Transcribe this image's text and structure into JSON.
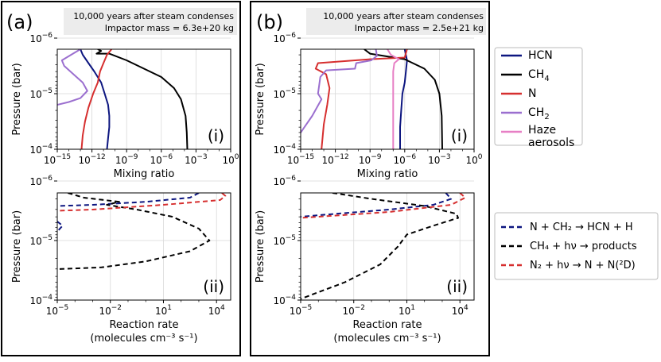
{
  "panels": [
    {
      "label": "(a)",
      "annotation": {
        "line1": "10,000 years after steam condenses",
        "line2_prefix": "Impactor mass = ",
        "line2_value": "6.3e+20 kg"
      },
      "top_sublabel": "(i)",
      "bottom_sublabel": "(ii)"
    },
    {
      "label": "(b)",
      "annotation": {
        "line1": "10,000 years after steam condenses",
        "line2_prefix": "Impactor mass = ",
        "line2_value": "2.5e+21 kg"
      },
      "top_sublabel": "(i)",
      "bottom_sublabel": "(ii)"
    }
  ],
  "axes": {
    "pressure_label": "Pressure (bar)",
    "mixing_label": "Mixing ratio",
    "rate_label_line1": "Reaction rate",
    "rate_label_line2": "(molecules cm⁻³ s⁻¹)",
    "pressure_ticks": [
      {
        "base": "10",
        "exp": "−6",
        "value": -6
      },
      {
        "base": "10",
        "exp": "−5",
        "value": -5
      },
      {
        "base": "10",
        "exp": "−4",
        "value": -4
      }
    ],
    "mixing_ticks": [
      {
        "base": "10",
        "exp": "−15",
        "value": -15
      },
      {
        "base": "10",
        "exp": "−12",
        "value": -12
      },
      {
        "base": "10",
        "exp": "−9",
        "value": -9
      },
      {
        "base": "10",
        "exp": "−6",
        "value": -6
      },
      {
        "base": "10",
        "exp": "−3",
        "value": -3
      },
      {
        "base": "10",
        "exp": "0",
        "value": 0
      }
    ],
    "rate_ticks": [
      {
        "base": "10",
        "exp": "−5",
        "value": -5
      },
      {
        "base": "10",
        "exp": "−2",
        "value": -2
      },
      {
        "base": "10",
        "exp": "1",
        "value": 1
      },
      {
        "base": "10",
        "exp": "4",
        "value": 4
      }
    ]
  },
  "legend_species": [
    {
      "label": "HCN",
      "sub": "",
      "color": "#0d1680"
    },
    {
      "label": "CH",
      "sub": "4",
      "color": "#000000"
    },
    {
      "label": "N",
      "sub": "",
      "color": "#d62f2f"
    },
    {
      "label": "CH",
      "sub": "2",
      "color": "#9b6fcf"
    },
    {
      "label": "Haze",
      "label2": "aerosols",
      "sub": "",
      "color": "#e77fc5"
    }
  ],
  "legend_reactions": [
    {
      "text": "N + CH₂ → HCN + H",
      "color": "#0d1680"
    },
    {
      "text": "CH₄ + hν → products",
      "color": "#000000"
    },
    {
      "text": "N₂ + hν → N + N(²D)",
      "color": "#d62f2f"
    }
  ],
  "chart_data": [
    {
      "type": "line",
      "title": "(a)(i) Mixing ratio profiles, impactor mass 6.3e+20 kg",
      "xlabel": "Mixing ratio",
      "ylabel": "Pressure (bar)",
      "xscale": "log",
      "yscale": "log",
      "xlim": [
        -15,
        0
      ],
      "ylim": [
        -4,
        -5.8
      ],
      "grid": true,
      "series": [
        {
          "name": "HCN",
          "color": "#0d1680",
          "dash": "",
          "points": [
            [
              -13.0,
              -5.8
            ],
            [
              -12.8,
              -5.7
            ],
            [
              -12.3,
              -5.55
            ],
            [
              -11.8,
              -5.4
            ],
            [
              -11.2,
              -5.2
            ],
            [
              -10.9,
              -5.0
            ],
            [
              -10.6,
              -4.8
            ],
            [
              -10.5,
              -4.6
            ],
            [
              -10.5,
              -4.4
            ],
            [
              -10.6,
              -4.2
            ],
            [
              -10.7,
              -4.0
            ]
          ]
        },
        {
          "name": "CH4",
          "color": "#000000",
          "dash": "",
          "points": [
            [
              -11.5,
              -5.8
            ],
            [
              -11.2,
              -5.77
            ],
            [
              -11.6,
              -5.72
            ],
            [
              -10.5,
              -5.72
            ],
            [
              -9.0,
              -5.6
            ],
            [
              -7.5,
              -5.45
            ],
            [
              -6.0,
              -5.3
            ],
            [
              -4.9,
              -5.1
            ],
            [
              -4.3,
              -4.9
            ],
            [
              -3.9,
              -4.6
            ],
            [
              -3.8,
              -4.3
            ],
            [
              -3.75,
              -4.0
            ]
          ]
        },
        {
          "name": "N",
          "color": "#d62f2f",
          "dash": "",
          "points": [
            [
              -10.3,
              -5.8
            ],
            [
              -10.7,
              -5.7
            ],
            [
              -11.0,
              -5.55
            ],
            [
              -11.3,
              -5.4
            ],
            [
              -11.5,
              -5.2
            ],
            [
              -11.9,
              -5.0
            ],
            [
              -12.3,
              -4.75
            ],
            [
              -12.6,
              -4.5
            ],
            [
              -12.8,
              -4.25
            ],
            [
              -12.9,
              -4.0
            ]
          ]
        },
        {
          "name": "CH2",
          "color": "#9b6fcf",
          "dash": "",
          "points": [
            [
              -13.0,
              -5.8
            ],
            [
              -13.8,
              -5.7
            ],
            [
              -14.6,
              -5.6
            ],
            [
              -14.4,
              -5.5
            ],
            [
              -13.6,
              -5.35
            ],
            [
              -12.8,
              -5.2
            ],
            [
              -12.4,
              -5.05
            ],
            [
              -13.0,
              -4.92
            ],
            [
              -14.0,
              -4.85
            ],
            [
              -15.0,
              -4.8
            ]
          ]
        }
      ]
    },
    {
      "type": "line",
      "title": "(a)(ii) Reaction rates, impactor mass 6.3e+20 kg",
      "xlabel": "Reaction rate (molecules cm^-3 s^-1)",
      "ylabel": "Pressure (bar)",
      "xscale": "log",
      "yscale": "log",
      "xlim": [
        -5,
        4.8
      ],
      "ylim": [
        -4,
        -5.8
      ],
      "grid": true,
      "series": [
        {
          "name": "N + CH2 -> HCN + H",
          "color": "#0d1680",
          "dash": "6 4",
          "points": [
            [
              3.0,
              -5.8
            ],
            [
              2.5,
              -5.72
            ],
            [
              0.0,
              -5.65
            ],
            [
              -3.0,
              -5.6
            ],
            [
              -5.0,
              -5.58
            ]
          ]
        },
        {
          "name": "N + CH2 -> HCN + H (deep branch)",
          "color": "#0d1680",
          "dash": "6 4",
          "points": [
            [
              -5.0,
              -5.32
            ],
            [
              -4.7,
              -5.25
            ],
            [
              -5.0,
              -5.15
            ]
          ]
        },
        {
          "name": "CH4 + hv -> products",
          "color": "#000000",
          "dash": "6 4",
          "points": [
            [
              -4.4,
              -5.8
            ],
            [
              -3.5,
              -5.72
            ],
            [
              -1.5,
              -5.65
            ],
            [
              -2.2,
              -5.6
            ],
            [
              -0.5,
              -5.52
            ],
            [
              1.5,
              -5.4
            ],
            [
              3.0,
              -5.2
            ],
            [
              3.6,
              -5.0
            ],
            [
              2.5,
              -4.82
            ],
            [
              0.0,
              -4.65
            ],
            [
              -2.5,
              -4.55
            ],
            [
              -5.0,
              -4.52
            ]
          ]
        },
        {
          "name": "N2 + hv -> N + N(2D)",
          "color": "#d62f2f",
          "dash": "6 4",
          "points": [
            [
              4.3,
              -5.8
            ],
            [
              4.5,
              -5.75
            ],
            [
              4.2,
              -5.68
            ],
            [
              1.0,
              -5.6
            ],
            [
              -3.0,
              -5.52
            ],
            [
              -5.0,
              -5.5
            ]
          ]
        }
      ]
    },
    {
      "type": "line",
      "title": "(b)(i) Mixing ratio profiles, impactor mass 2.5e+21 kg",
      "xlabel": "Mixing ratio",
      "ylabel": "Pressure (bar)",
      "xscale": "log",
      "yscale": "log",
      "xlim": [
        -15,
        0
      ],
      "ylim": [
        -4,
        -5.8
      ],
      "grid": true,
      "series": [
        {
          "name": "HCN",
          "color": "#0d1680",
          "dash": "",
          "points": [
            [
              -6.0,
              -5.8
            ],
            [
              -5.8,
              -5.6
            ],
            [
              -5.9,
              -5.4
            ],
            [
              -6.0,
              -5.2
            ],
            [
              -6.2,
              -5.0
            ],
            [
              -6.3,
              -4.7
            ],
            [
              -6.4,
              -4.4
            ],
            [
              -6.4,
              -4.0
            ]
          ]
        },
        {
          "name": "CH4",
          "color": "#000000",
          "dash": "",
          "points": [
            [
              -9.5,
              -5.8
            ],
            [
              -9.0,
              -5.72
            ],
            [
              -6.0,
              -5.62
            ],
            [
              -4.3,
              -5.45
            ],
            [
              -3.4,
              -5.25
            ],
            [
              -3.0,
              -5.0
            ],
            [
              -2.8,
              -4.6
            ],
            [
              -2.75,
              -4.0
            ]
          ]
        },
        {
          "name": "N",
          "color": "#d62f2f",
          "dash": "",
          "points": [
            [
              -5.8,
              -5.8
            ],
            [
              -6.0,
              -5.65
            ],
            [
              -9.0,
              -5.62
            ],
            [
              -13.5,
              -5.55
            ],
            [
              -13.7,
              -5.45
            ],
            [
              -12.8,
              -5.35
            ],
            [
              -12.5,
              -5.1
            ],
            [
              -12.7,
              -4.8
            ],
            [
              -13.0,
              -4.45
            ],
            [
              -13.2,
              -4.0
            ]
          ]
        },
        {
          "name": "CH2",
          "color": "#9b6fcf",
          "dash": "",
          "points": [
            [
              -8.5,
              -5.8
            ],
            [
              -8.4,
              -5.68
            ],
            [
              -8.9,
              -5.6
            ],
            [
              -10.2,
              -5.55
            ],
            [
              -10.3,
              -5.45
            ],
            [
              -12.8,
              -5.42
            ],
            [
              -13.3,
              -5.3
            ],
            [
              -13.5,
              -5.0
            ],
            [
              -13.2,
              -4.9
            ],
            [
              -14.0,
              -4.6
            ],
            [
              -15.0,
              -4.3
            ]
          ]
        },
        {
          "name": "Haze aerosols",
          "color": "#e77fc5",
          "dash": "",
          "points": [
            [
              -7.5,
              -5.8
            ],
            [
              -7.2,
              -5.7
            ],
            [
              -6.5,
              -5.62
            ],
            [
              -6.9,
              -5.55
            ],
            [
              -7.0,
              -5.4
            ],
            [
              -7.0,
              -5.0
            ],
            [
              -7.0,
              -4.5
            ],
            [
              -7.0,
              -4.0
            ]
          ]
        }
      ]
    },
    {
      "type": "line",
      "title": "(b)(ii) Reaction rates, impactor mass 2.5e+21 kg",
      "xlabel": "Reaction rate (molecules cm^-3 s^-1)",
      "ylabel": "Pressure (bar)",
      "xscale": "log",
      "yscale": "log",
      "xlim": [
        -5,
        4.8
      ],
      "ylim": [
        -4,
        -5.8
      ],
      "grid": true,
      "series": [
        {
          "name": "N + CH2 -> HCN + H",
          "color": "#0d1680",
          "dash": "6 4",
          "points": [
            [
              3.2,
              -5.8
            ],
            [
              3.5,
              -5.7
            ],
            [
              2.5,
              -5.6
            ],
            [
              0.0,
              -5.52
            ],
            [
              -3.0,
              -5.45
            ],
            [
              -5.0,
              -5.4
            ]
          ]
        },
        {
          "name": "CH4 + hv -> products",
          "color": "#000000",
          "dash": "6 4",
          "points": [
            [
              -3.2,
              -5.8
            ],
            [
              -1.0,
              -5.7
            ],
            [
              2.0,
              -5.58
            ],
            [
              3.8,
              -5.45
            ],
            [
              3.9,
              -5.38
            ],
            [
              2.5,
              -5.25
            ],
            [
              1.0,
              -5.1
            ],
            [
              0.5,
              -4.9
            ],
            [
              -0.5,
              -4.6
            ],
            [
              -2.5,
              -4.3
            ],
            [
              -5.0,
              -4.02
            ]
          ]
        },
        {
          "name": "N2 + hv -> N + N(2D)",
          "color": "#d62f2f",
          "dash": "6 4",
          "points": [
            [
              4.0,
              -5.8
            ],
            [
              4.3,
              -5.72
            ],
            [
              3.5,
              -5.6
            ],
            [
              0.0,
              -5.48
            ],
            [
              -3.0,
              -5.42
            ],
            [
              -5.0,
              -5.38
            ]
          ]
        }
      ]
    }
  ]
}
